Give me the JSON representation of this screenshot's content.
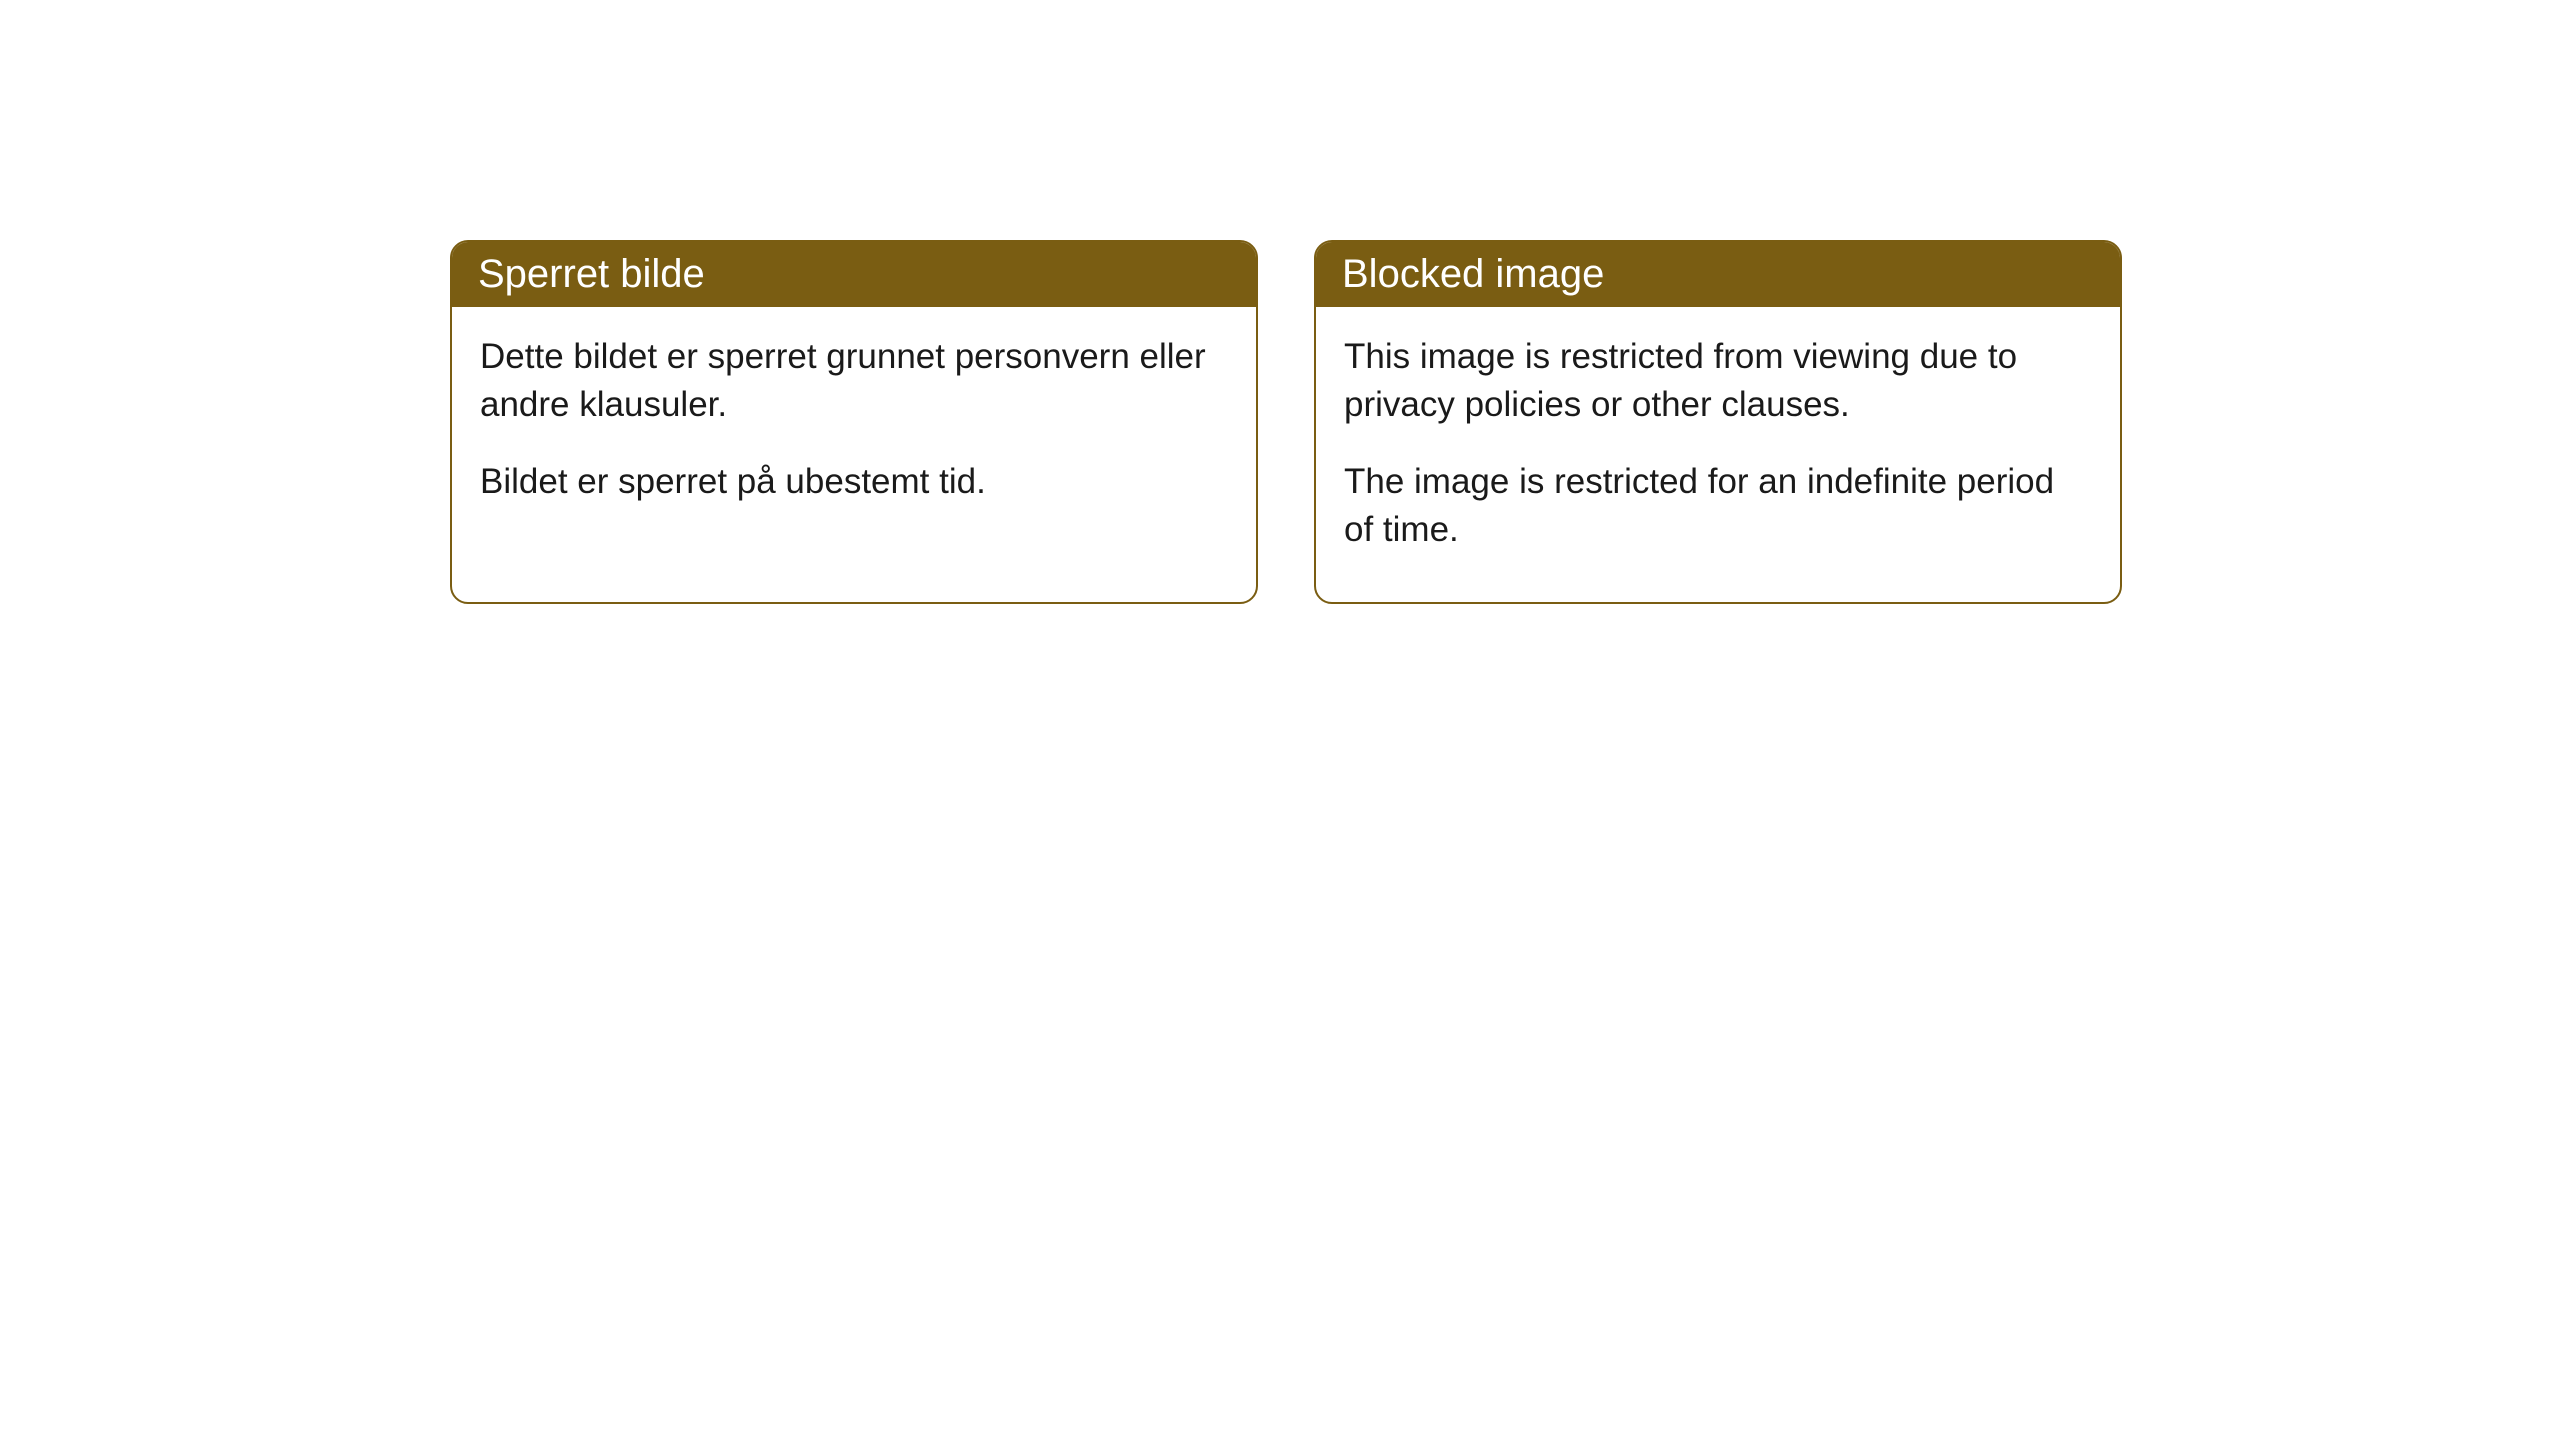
{
  "cards": [
    {
      "title": "Sperret bilde",
      "para1": "Dette bildet er sperret grunnet personvern eller andre klausuler.",
      "para2": "Bildet er sperret på ubestemt tid."
    },
    {
      "title": "Blocked image",
      "para1": "This image is restricted from viewing due to privacy policies or other clauses.",
      "para2": "The image is restricted for an indefinite period of time."
    }
  ],
  "style": {
    "header_bg": "#7a5d12",
    "header_text_color": "#ffffff",
    "border_color": "#7a5d12",
    "body_bg": "#ffffff",
    "body_text_color": "#1a1a1a",
    "border_radius": 18,
    "header_fontsize": 40,
    "body_fontsize": 35
  }
}
